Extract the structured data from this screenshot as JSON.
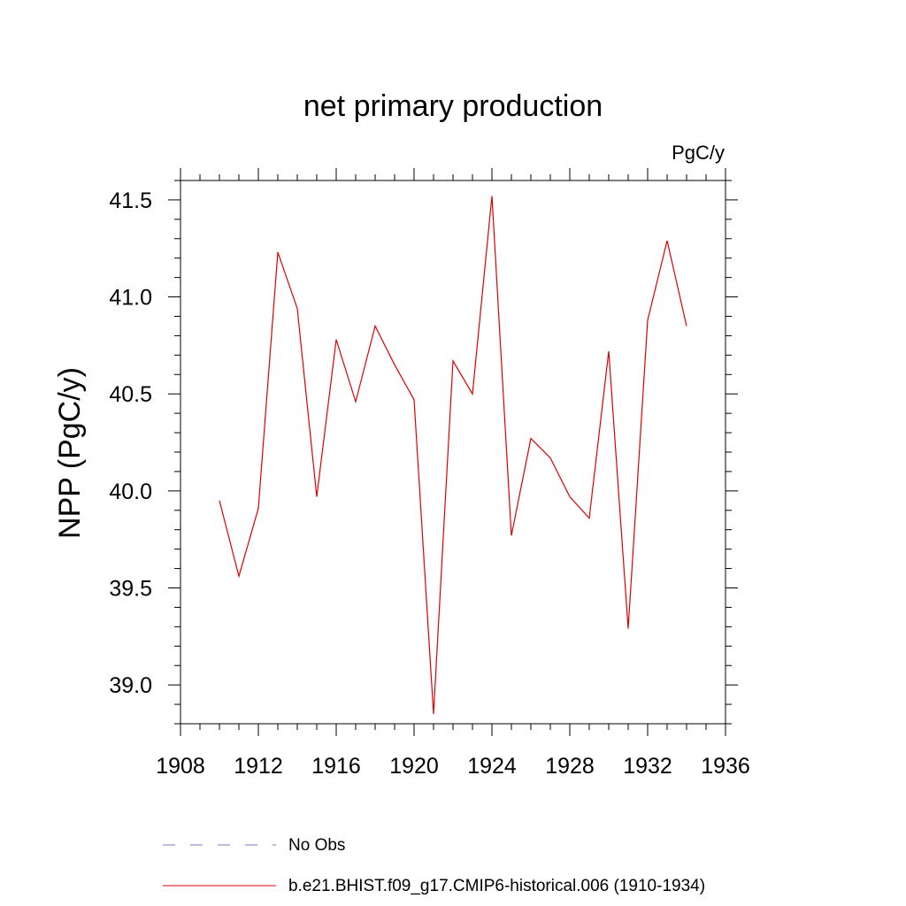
{
  "chart_data": {
    "type": "line",
    "title": "net primary production",
    "units": "PgC/y",
    "ylabel": "NPP  (PgC/y)",
    "xlabel": "",
    "xlim": [
      1908,
      1936
    ],
    "ylim": [
      38.8,
      41.6
    ],
    "xticks": [
      1908,
      1912,
      1916,
      1920,
      1924,
      1928,
      1932,
      1936
    ],
    "xtick_labels": [
      "1908",
      "1912",
      "1916",
      "1920",
      "1924",
      "1928",
      "1932",
      "1936"
    ],
    "yticks": [
      39.0,
      39.5,
      40.0,
      40.5,
      41.0,
      41.5
    ],
    "ytick_labels": [
      "39.0",
      "39.5",
      "40.0",
      "40.5",
      "41.0",
      "41.5"
    ],
    "grid": false,
    "legend_position": "bottom",
    "series": [
      {
        "name": "b.e21.BHIST.f09_g17.CMIP6-historical.006 (1910-1934)",
        "color": "#e00000",
        "style": "solid",
        "x": [
          1910,
          1911,
          1912,
          1913,
          1914,
          1915,
          1916,
          1917,
          1918,
          1919,
          1920,
          1921,
          1922,
          1923,
          1924,
          1925,
          1926,
          1927,
          1928,
          1929,
          1930,
          1931,
          1932,
          1933,
          1934
        ],
        "values": [
          39.95,
          39.56,
          39.91,
          41.23,
          40.94,
          39.97,
          40.78,
          40.46,
          40.85,
          40.65,
          40.47,
          38.85,
          40.67,
          40.5,
          41.52,
          39.77,
          40.27,
          40.17,
          39.97,
          39.86,
          40.72,
          39.29,
          40.88,
          41.29,
          40.85
        ]
      }
    ],
    "legend": [
      {
        "label": "No Obs",
        "color": "#7777cc",
        "style": "dashed"
      },
      {
        "label": "b.e21.BHIST.f09_g17.CMIP6-historical.006 (1910-1934)",
        "color": "#e00000",
        "style": "solid"
      }
    ]
  }
}
